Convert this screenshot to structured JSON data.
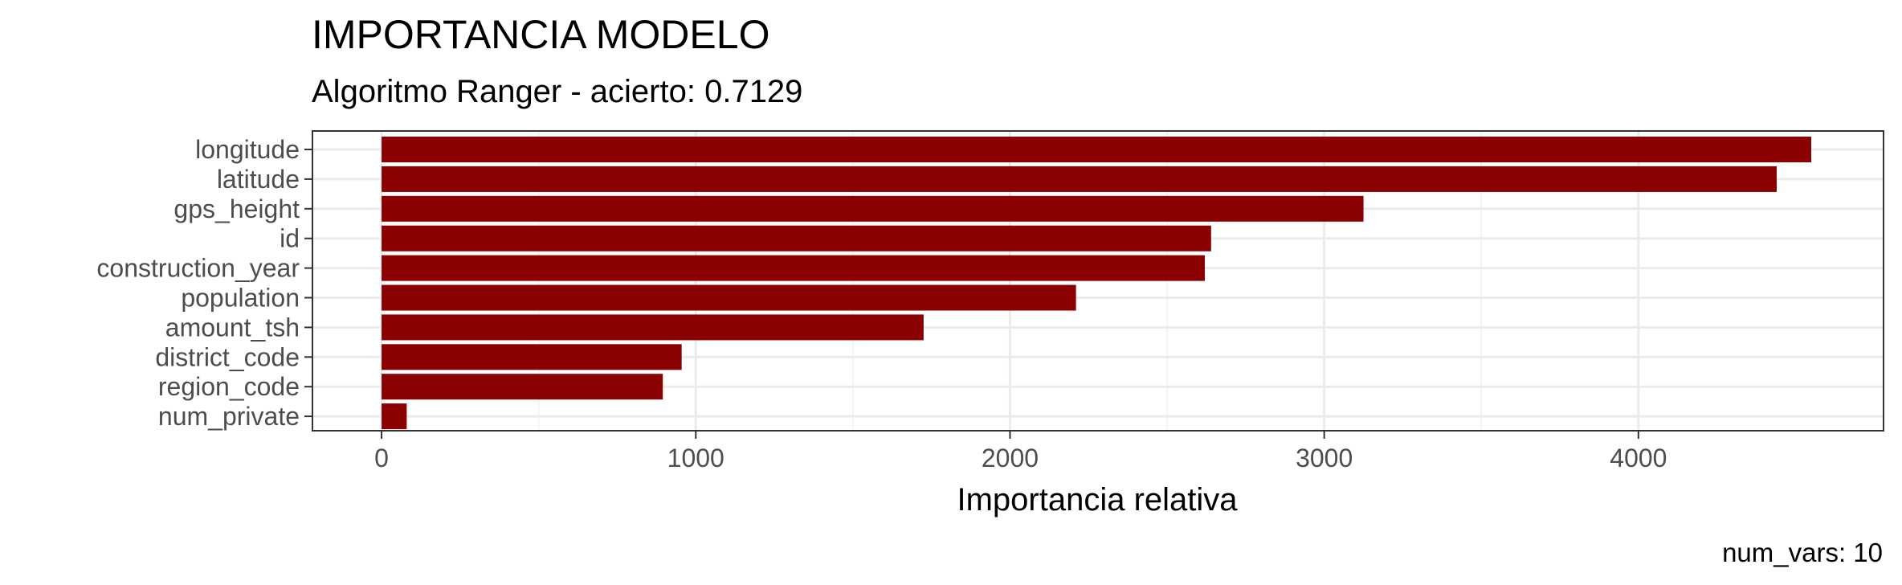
{
  "chart_data": {
    "type": "bar",
    "orientation": "horizontal",
    "title": "IMPORTANCIA MODELO",
    "subtitle": "Algoritmo Ranger - acierto: 0.7129",
    "xlabel": "Importancia relativa",
    "ylabel": "",
    "caption": "num_vars: 10",
    "categories": [
      "longitude",
      "latitude",
      "gps_height",
      "id",
      "construction_year",
      "population",
      "amount_tsh",
      "district_code",
      "region_code",
      "num_private"
    ],
    "values": [
      4550,
      4440,
      3125,
      2640,
      2620,
      2210,
      1725,
      955,
      895,
      80
    ],
    "x_ticks": [
      "0",
      "1000",
      "2000",
      "3000",
      "4000"
    ],
    "xlim": [
      -220,
      4780
    ],
    "bar_color": "#8B0000",
    "grid": true,
    "theme": "bw"
  }
}
